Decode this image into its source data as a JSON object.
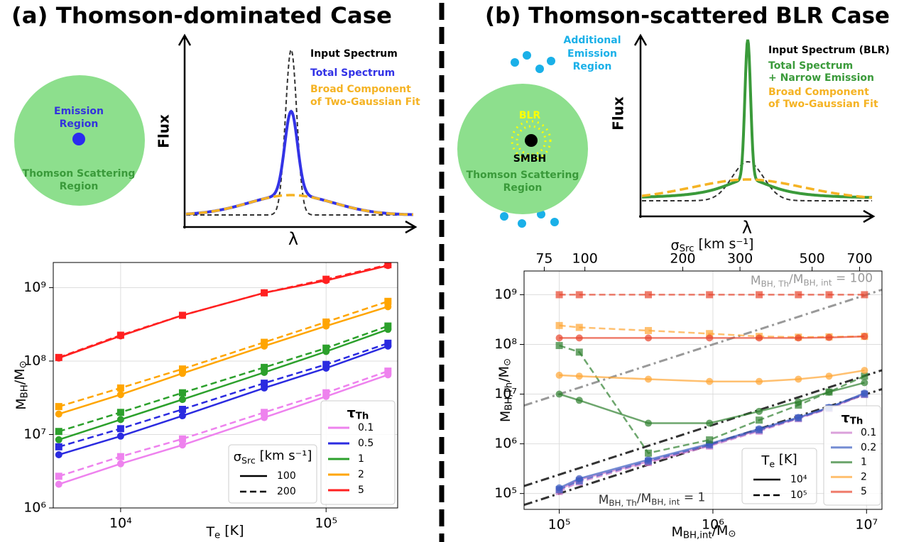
{
  "panels": [
    {
      "title": "(a) Thomson-dominated Case",
      "diagram": {
        "emission_label": [
          "Emission",
          "Region"
        ],
        "scattering_label": [
          "Thomson Scattering",
          "Region"
        ]
      },
      "spectrum": {
        "y_label": "Flux",
        "x_label": "λ",
        "legend": [
          [
            "Input Spectrum"
          ],
          [
            "Total Spectrum"
          ],
          [
            "Broad Component",
            "of Two-Gaussian Fit"
          ]
        ]
      }
    },
    {
      "title": "(b) Thomson-scattered BLR Case",
      "diagram": {
        "additional_label": [
          "Additional",
          "Emission",
          "Region"
        ],
        "blr_label": "BLR",
        "smbh_label": "SMBH",
        "scattering_label": [
          "Thomson Scattering",
          "Region"
        ]
      },
      "spectrum": {
        "y_label": "Flux",
        "x_label": "λ",
        "legend": [
          [
            "Input Spectrum (BLR)"
          ],
          [
            "Total Spectrum",
            "+ Narrow Emission"
          ],
          [
            "Broad Component",
            "of Two-Gaussian Fit"
          ]
        ]
      }
    }
  ],
  "chart_data": [
    {
      "type": "line",
      "log_x": true,
      "log_y": true,
      "grid": true,
      "opacity": 1,
      "x_label": [
        "T",
        "e",
        " [K]"
      ],
      "y_label": [
        "M",
        "BH",
        "/M",
        "⊙"
      ],
      "x": [
        5000,
        10000,
        20000,
        50000,
        100000,
        200000
      ],
      "xlim": [
        4700,
        223000
      ],
      "xticks": [
        {
          "value": 10000,
          "label": "10⁴"
        },
        {
          "value": 100000,
          "label": "10⁵"
        }
      ],
      "ylim": [
        1000000,
        2200000000
      ],
      "yticks": [
        {
          "value": 1000000.0,
          "label": "10⁶"
        },
        {
          "value": 10000000.0,
          "label": "10⁷"
        },
        {
          "value": 100000000.0,
          "label": "10⁸"
        },
        {
          "value": 1000000000.0,
          "label": "10⁹"
        }
      ],
      "legend_corner": "lower right",
      "legend_title": [
        "τ",
        "Th"
      ],
      "style_legend": {
        "title": [
          "σ",
          "Src",
          " [km s⁻¹]"
        ],
        "entries": [
          {
            "label": "100",
            "dash": "solid",
            "marker": "circle"
          },
          {
            "label": "200",
            "dash": "dashed",
            "marker": "square"
          }
        ]
      },
      "series": [
        {
          "name": "0.1",
          "color": "#ee82ee",
          "styles": [
            {
              "values": [
                2100000.0,
                4000000.0,
                7200000.0,
                17000000.0,
                33000000.0,
                65000000.0
              ]
            },
            {
              "values": [
                2700000.0,
                5000000.0,
                8700000.0,
                20000000.0,
                37000000.0,
                73000000.0
              ]
            }
          ]
        },
        {
          "name": "0.5",
          "color": "#2b2be0",
          "styles": [
            {
              "values": [
                5300000.0,
                9500000.0,
                18000000.0,
                43000000.0,
                80000000.0,
                160000000.0
              ]
            },
            {
              "values": [
                6800000.0,
                12000000.0,
                22000000.0,
                50000000.0,
                90000000.0,
                175000000.0
              ]
            }
          ]
        },
        {
          "name": "1",
          "color": "#2ca02c",
          "styles": [
            {
              "values": [
                8500000.0,
                16000000.0,
                30000000.0,
                70000000.0,
                135000000.0,
                270000000.0
              ]
            },
            {
              "values": [
                11000000.0,
                20000000.0,
                37000000.0,
                82000000.0,
                150000000.0,
                300000000.0
              ]
            }
          ]
        },
        {
          "name": "2",
          "color": "#ffa500",
          "styles": [
            {
              "values": [
                19000000.0,
                35000000.0,
                68000000.0,
                160000000.0,
                300000000.0,
                550000000.0
              ]
            },
            {
              "values": [
                24000000.0,
                43000000.0,
                78000000.0,
                180000000.0,
                340000000.0,
                650000000.0
              ]
            }
          ]
        },
        {
          "name": "5",
          "color": "#ff2020",
          "styles": [
            {
              "values": [
                110000000.0,
                220000000.0,
                420000000.0,
                850000000.0,
                1250000000.0,
                2000000000.0
              ]
            },
            {
              "values": [
                112000000.0,
                225000000.0,
                420000000.0,
                850000000.0,
                1300000000.0,
                2050000000.0
              ]
            }
          ]
        }
      ]
    },
    {
      "type": "line",
      "log_x": true,
      "log_y": true,
      "grid": true,
      "opacity": 0.7,
      "x_label": [
        "M",
        "BH,int",
        "/M",
        "⊙"
      ],
      "y_label": [
        "M",
        "BH,Th",
        "/M",
        "⊙"
      ],
      "x2_label": [
        "σ",
        "Src",
        " [km s⁻¹]"
      ],
      "x": [
        100000,
        135000,
        380000,
        950000,
        2000000,
        3600000,
        5700000,
        9700000
      ],
      "xlim": [
        59000,
        12600000
      ],
      "xticks": [
        {
          "value": 100000.0,
          "label": "10⁵"
        },
        {
          "value": 1000000.0,
          "label": "10⁶"
        },
        {
          "value": 10000000.0,
          "label": "10⁷"
        }
      ],
      "x2lim": [
        65,
        820
      ],
      "x2ticks": [
        75,
        100,
        200,
        300,
        500,
        700
      ],
      "ylim": [
        48000,
        3000000000
      ],
      "yticks": [
        {
          "value": 100000.0,
          "label": "10⁵"
        },
        {
          "value": 1000000.0,
          "label": "10⁶"
        },
        {
          "value": 10000000.0,
          "label": "10⁷"
        },
        {
          "value": 100000000.0,
          "label": "10⁸"
        },
        {
          "value": 1000000000.0,
          "label": "10⁹"
        }
      ],
      "legend_corner": "lower right",
      "legend_title": [
        "τ",
        "Th"
      ],
      "style_legend": {
        "title": [
          "T",
          "e",
          " [K]"
        ],
        "entries": [
          {
            "label": "10⁴",
            "dash": "solid",
            "marker": "circle"
          },
          {
            "label": "10⁵",
            "dash": "dashed",
            "marker": "square"
          }
        ]
      },
      "ref_lines": [
        {
          "ratio": 100,
          "color": "#999999",
          "label": [
            "M",
            "BH, Th",
            "/M",
            "BH, int",
            " = 100"
          ]
        },
        {
          "ratio": 2.4,
          "color": "#333333"
        },
        {
          "ratio": 1,
          "color": "#333333",
          "label": [
            "M",
            "BH, Th",
            "/M",
            "BH, int",
            " = 1"
          ]
        }
      ],
      "series": [
        {
          "name": "0.1",
          "color": "#cc77cc",
          "styles": [
            {
              "values": [
                120000.0,
                190000.0,
                440000.0,
                930000.0,
                1900000.0,
                3300000.0,
                5200000.0,
                10000000.0
              ]
            },
            {
              "values": [
                110000.0,
                170000.0,
                420000.0,
                900000.0,
                1800000.0,
                3200000.0,
                5100000.0,
                9800000.0
              ]
            }
          ]
        },
        {
          "name": "0.2",
          "color": "#3a5cc0",
          "styles": [
            {
              "values": [
                130000.0,
                200000.0,
                480000.0,
                1000000.0,
                2000000.0,
                3400000.0,
                5400000.0,
                10500000.0
              ]
            },
            {
              "values": [
                120000.0,
                180000.0,
                450000.0,
                950000.0,
                1900000.0,
                3300000.0,
                5300000.0,
                10000000.0
              ]
            }
          ]
        },
        {
          "name": "1",
          "color": "#2f802f",
          "styles": [
            {
              "values": [
                10000000.0,
                7500000.0,
                2600000.0,
                2600000.0,
                4500000.0,
                7000000.0,
                11000000.0,
                17000000.0
              ]
            },
            {
              "values": [
                95000000.0,
                70000000.0,
                650000.0,
                1200000.0,
                3000000.0,
                6000000.0,
                11000000.0,
                23000000.0
              ]
            }
          ]
        },
        {
          "name": "2",
          "color": "#ffa533",
          "styles": [
            {
              "values": [
                24000000.0,
                23000000.0,
                20000000.0,
                18000000.0,
                18000000.0,
                20000000.0,
                23000000.0,
                30000000.0
              ]
            },
            {
              "values": [
                240000000.0,
                220000000.0,
                190000000.0,
                165000000.0,
                145000000.0,
                140000000.0,
                142000000.0,
                145000000.0
              ]
            }
          ]
        },
        {
          "name": "5",
          "color": "#e8452c",
          "styles": [
            {
              "values": [
                135000000.0,
                135000000.0,
                135000000.0,
                135000000.0,
                135000000.0,
                135000000.0,
                138000000.0,
                145000000.0
              ]
            },
            {
              "values": [
                1000000000.0,
                1000000000.0,
                1000000000.0,
                1000000000.0,
                1000000000.0,
                1000000000.0,
                1000000000.0,
                1000000000.0
              ]
            }
          ]
        }
      ]
    }
  ]
}
